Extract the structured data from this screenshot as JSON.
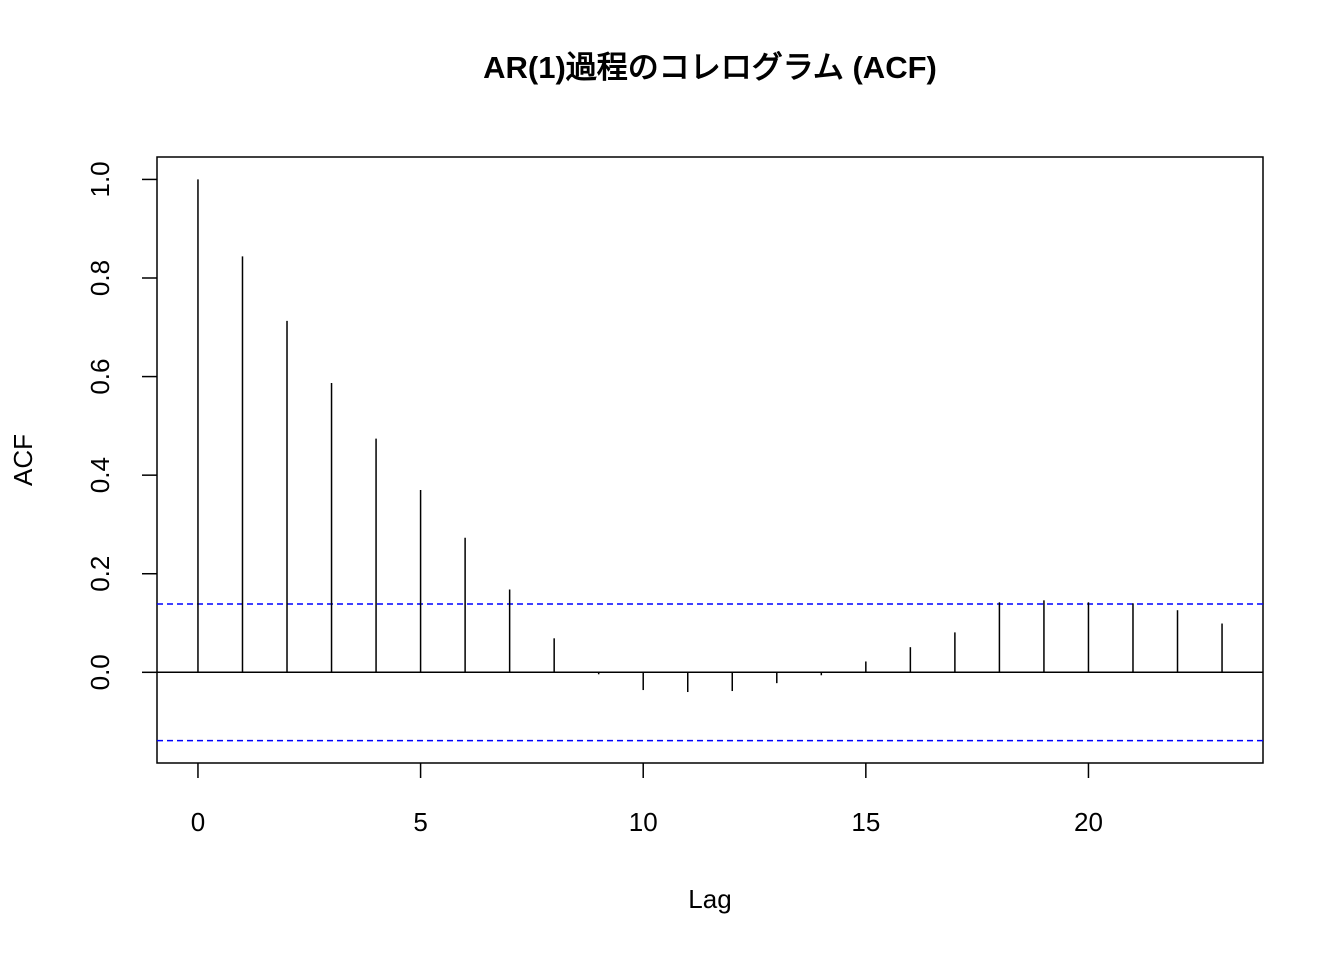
{
  "chart_data": {
    "type": "stem",
    "title": "AR(1)過程のコレログラム (ACF)",
    "x_label": "Lag",
    "y_label": "ACF",
    "x": [
      0,
      1,
      2,
      3,
      4,
      5,
      6,
      7,
      8,
      9,
      10,
      11,
      12,
      13,
      14,
      15,
      16,
      17,
      18,
      19,
      20,
      21,
      22,
      23
    ],
    "values": [
      1.0,
      0.844,
      0.713,
      0.587,
      0.474,
      0.37,
      0.273,
      0.168,
      0.069,
      -0.004,
      -0.036,
      -0.04,
      -0.038,
      -0.022,
      -0.006,
      0.022,
      0.051,
      0.081,
      0.142,
      0.146,
      0.142,
      0.14,
      0.126,
      0.099
    ],
    "color": "#000000",
    "conf_limits": [
      0.1386,
      -0.1386
    ],
    "conf_color": "#0000ff",
    "xlim": [
      -0.92,
      23.92
    ],
    "xticks": [
      0,
      5,
      10,
      15,
      20
    ],
    "ylim": [
      -0.184,
      1.0455
    ],
    "yticks": [
      {
        "value": 0,
        "label": "0.0"
      },
      0.2,
      0.4,
      0.6,
      0.8,
      {
        "value": 1,
        "label": "1.0"
      }
    ]
  }
}
